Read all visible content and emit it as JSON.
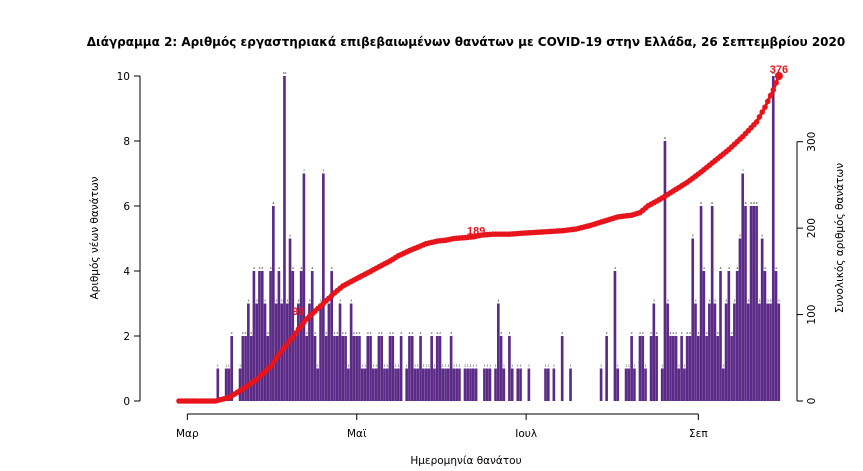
{
  "chart_data": {
    "type": "bar",
    "title": "Διάγραμμα 2: Αριθμός εργαστηριακά επιβεβαιωμένων θανάτων με COVID-19 στην Ελλάδα, 26 Σεπτεμβρίου 2020",
    "xlabel": "Ημερομηνία θανάτου",
    "ylabel_left": "Αριθμός νέων θανάτων",
    "ylabel_right": "Συνολικός αριθμός θανάτων",
    "x_ticks": [
      {
        "day": 0,
        "label": "Μαρ"
      },
      {
        "day": 61,
        "label": "Μαϊ"
      },
      {
        "day": 122,
        "label": "Ιουλ"
      },
      {
        "day": 184,
        "label": "Σεπ"
      }
    ],
    "ylim_left": [
      0,
      10
    ],
    "yticks_left": [
      0,
      2,
      4,
      6,
      8,
      10
    ],
    "ylim_right": [
      0,
      376
    ],
    "yticks_right": [
      0,
      100,
      200,
      300
    ],
    "grid": false,
    "bar_color": "#5b2a86",
    "line_color": "#e8141b",
    "series": [
      {
        "kind": "bar",
        "axis": "left",
        "start_day": 11,
        "values": [
          1,
          0,
          0,
          1,
          1,
          2,
          0,
          0,
          1,
          2,
          2,
          3,
          2,
          4,
          3,
          4,
          4,
          3,
          2,
          4,
          6,
          3,
          4,
          3,
          10,
          3,
          5,
          4,
          2,
          3,
          4,
          7,
          2,
          3,
          4,
          2,
          1,
          3,
          7,
          2,
          3,
          4,
          2,
          2,
          3,
          2,
          2,
          1,
          3,
          2,
          2,
          2,
          1,
          1,
          2,
          2,
          1,
          1,
          2,
          2,
          1,
          1,
          2,
          2,
          1,
          1,
          2,
          0,
          1,
          2,
          2,
          1,
          1,
          2,
          1,
          1,
          1,
          2,
          1,
          2,
          2,
          1,
          1,
          1,
          2,
          1,
          1,
          1,
          0,
          1,
          1,
          1,
          1,
          1,
          0,
          0,
          1,
          1,
          1,
          0,
          1,
          3,
          2,
          1,
          0,
          2,
          1,
          0,
          1,
          1,
          0,
          0,
          1,
          0,
          0,
          0,
          0,
          0,
          1,
          1,
          0,
          1,
          0,
          0,
          2,
          0,
          0,
          1,
          0,
          0,
          0,
          0,
          0,
          0,
          0,
          0,
          0,
          0,
          1,
          0,
          2,
          0,
          0,
          4,
          1,
          0,
          0,
          1,
          1,
          2,
          1,
          0,
          2,
          2,
          1,
          0,
          2,
          3,
          2,
          0,
          1,
          8,
          3,
          2,
          2,
          2,
          1,
          2,
          1,
          2,
          2,
          5,
          3,
          2,
          6,
          4,
          2,
          3,
          6,
          3,
          2,
          4,
          1,
          3,
          4,
          2,
          3,
          4,
          5,
          7,
          6,
          3,
          6,
          6,
          6,
          3,
          5,
          4,
          3,
          3,
          10,
          4,
          3
        ]
      },
      {
        "kind": "line",
        "axis": "right",
        "points": [
          [
            -3,
            0
          ],
          [
            0,
            0
          ],
          [
            10,
            0
          ],
          [
            15,
            4
          ],
          [
            20,
            14
          ],
          [
            25,
            25
          ],
          [
            30,
            40
          ],
          [
            33,
            54
          ],
          [
            35,
            62
          ],
          [
            38,
            74
          ],
          [
            40,
            83
          ],
          [
            43,
            95
          ],
          [
            46,
            104
          ],
          [
            50,
            116
          ],
          [
            53,
            125
          ],
          [
            56,
            133
          ],
          [
            60,
            140
          ],
          [
            63,
            145
          ],
          [
            66,
            150
          ],
          [
            70,
            157
          ],
          [
            73,
            162
          ],
          [
            76,
            168
          ],
          [
            80,
            174
          ],
          [
            83,
            178
          ],
          [
            86,
            182
          ],
          [
            90,
            185
          ],
          [
            93,
            186
          ],
          [
            96,
            188
          ],
          [
            100,
            189
          ],
          [
            103,
            190
          ],
          [
            106,
            192
          ],
          [
            110,
            193
          ],
          [
            113,
            193
          ],
          [
            116,
            193
          ],
          [
            120,
            194
          ],
          [
            125,
            195
          ],
          [
            130,
            196
          ],
          [
            135,
            197
          ],
          [
            140,
            199
          ],
          [
            145,
            203
          ],
          [
            150,
            208
          ],
          [
            155,
            213
          ],
          [
            160,
            215
          ],
          [
            163,
            218
          ],
          [
            166,
            226
          ],
          [
            170,
            233
          ],
          [
            175,
            243
          ],
          [
            180,
            253
          ],
          [
            185,
            265
          ],
          [
            190,
            278
          ],
          [
            195,
            291
          ],
          [
            200,
            306
          ],
          [
            205,
            323
          ],
          [
            208,
            340
          ],
          [
            211,
            360
          ],
          [
            213,
            376
          ]
        ]
      }
    ],
    "annotations": [
      {
        "label": "96",
        "day": 40,
        "value": 96
      },
      {
        "label": "189",
        "day": 104,
        "value": 189
      },
      {
        "label": "376",
        "day": 213,
        "value": 376
      }
    ]
  }
}
